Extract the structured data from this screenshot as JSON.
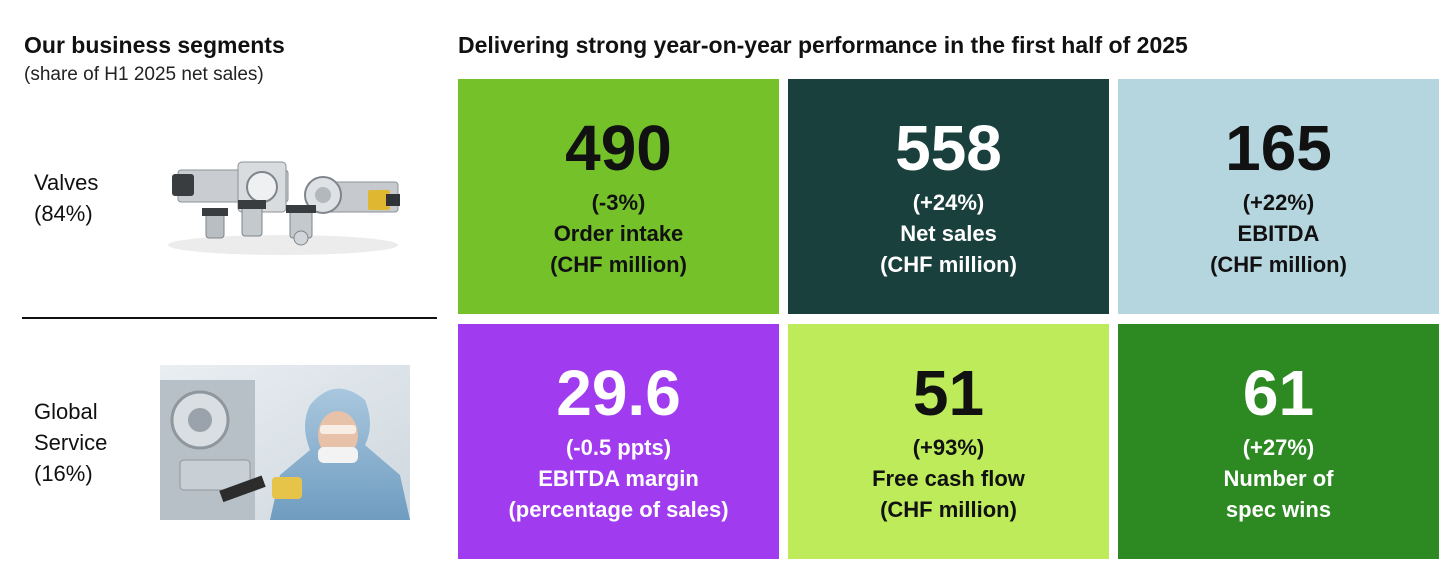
{
  "segments": {
    "title": "Our business segments",
    "subtitle": "(share of H1 2025 net sales)",
    "items": [
      {
        "name": "Valves",
        "share": "(84%)"
      },
      {
        "name_line1": "Global",
        "name_line2": "Service",
        "share": "(16%)"
      }
    ]
  },
  "kpis": {
    "title": "Delivering strong year-on-year performance in the first half of 2025",
    "tiles": [
      {
        "value": "490",
        "change": "(-3%)",
        "label1": "Order intake",
        "label2": "(CHF million)",
        "color": "#74c12a"
      },
      {
        "value": "558",
        "change": "(+24%)",
        "label1": "Net sales",
        "label2": "(CHF million)",
        "color": "#19403c"
      },
      {
        "value": "165",
        "change": "(+22%)",
        "label1": "EBITDA",
        "label2": "(CHF million)",
        "color": "#b5d6df"
      },
      {
        "value": "29.6",
        "change": "(-0.5 ppts)",
        "label1": "EBITDA margin",
        "label2": "(percentage of sales)",
        "color": "#a03bf0"
      },
      {
        "value": "51",
        "change": "(+93%)",
        "label1": "Free cash flow",
        "label2": "(CHF million)",
        "color": "#bdeb5a"
      },
      {
        "value": "61",
        "change": "(+27%)",
        "label1": "Number of",
        "label2": "spec wins",
        "color": "#2d8a22"
      }
    ]
  }
}
